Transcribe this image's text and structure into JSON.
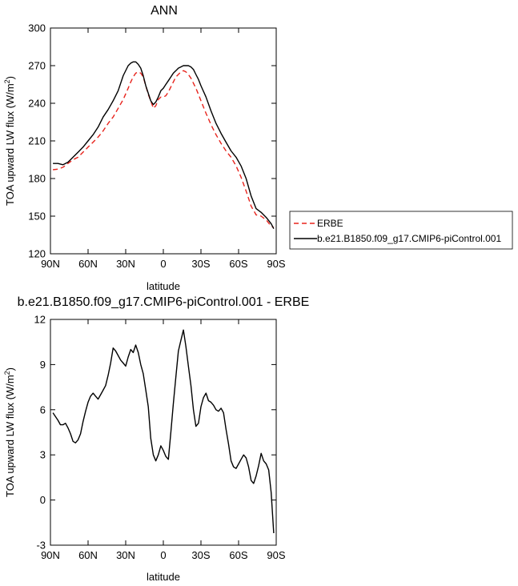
{
  "chart_data": [
    {
      "type": "line",
      "title": "ANN",
      "xlabel": "latitude",
      "ylabel": "TOA upward LW flux (W/m",
      "ylabel_sup": "2",
      "ylabel_end": ")",
      "xlim": [
        90,
        -90
      ],
      "ylim": [
        120,
        300
      ],
      "xticks": [
        {
          "v": 90,
          "label": "90N"
        },
        {
          "v": 60,
          "label": "60N"
        },
        {
          "v": 30,
          "label": "30N"
        },
        {
          "v": 0,
          "label": "0"
        },
        {
          "v": -30,
          "label": "30S"
        },
        {
          "v": -60,
          "label": "60S"
        },
        {
          "v": -90,
          "label": "90S"
        }
      ],
      "yticks": [
        120,
        150,
        180,
        210,
        240,
        270,
        300
      ],
      "legend_position": "right",
      "series": [
        {
          "name": "ERBE",
          "color": "#e8231c",
          "dash": "dashed",
          "x": [
            88,
            84,
            80,
            76,
            72,
            68,
            64,
            60,
            56,
            52,
            48,
            44,
            40,
            36,
            32,
            28,
            26,
            24,
            22,
            20,
            18,
            16,
            12,
            10,
            8,
            6,
            4,
            2,
            0,
            -2,
            -4,
            -6,
            -8,
            -10,
            -12,
            -14,
            -16,
            -18,
            -20,
            -22,
            -24,
            -26,
            -28,
            -30,
            -34,
            -38,
            -42,
            -46,
            -50,
            -54,
            -58,
            -62,
            -66,
            -70,
            -74,
            -78,
            -82,
            -86,
            -88
          ],
          "y": [
            187,
            187.5,
            189,
            192,
            195,
            197,
            201,
            205,
            209,
            213,
            218,
            224,
            229,
            236,
            243,
            252,
            257,
            261,
            264,
            265,
            264,
            261,
            247,
            242,
            236,
            238,
            243,
            245,
            245,
            246,
            249,
            253,
            257,
            261,
            263,
            265,
            266,
            265,
            263,
            260,
            256,
            252,
            247,
            242,
            232,
            223,
            215,
            208,
            202,
            197,
            190,
            181,
            170,
            158,
            151,
            150,
            147,
            142,
            141
          ]
        },
        {
          "name": "b.e21.B1850.f09_g17.CMIP6-piControl.001",
          "color": "#000000",
          "dash": "solid",
          "x": [
            88,
            84,
            80,
            76,
            72,
            68,
            64,
            60,
            56,
            52,
            48,
            44,
            40,
            36,
            32,
            28,
            26,
            24,
            22,
            20,
            18,
            16,
            14,
            12,
            10,
            8,
            6,
            4,
            2,
            0,
            -2,
            -4,
            -6,
            -8,
            -10,
            -12,
            -14,
            -16,
            -18,
            -20,
            -22,
            -24,
            -26,
            -28,
            -30,
            -34,
            -38,
            -42,
            -46,
            -50,
            -54,
            -58,
            -62,
            -66,
            -70,
            -74,
            -78,
            -82,
            -86,
            -88
          ],
          "y": [
            192,
            192,
            191,
            193,
            197,
            201,
            205,
            210,
            215,
            221,
            229,
            235,
            242,
            250,
            262,
            270,
            272,
            273,
            273,
            271,
            268,
            262,
            254,
            248,
            242,
            239,
            241,
            245,
            250,
            252,
            255,
            258,
            261,
            264,
            266,
            268,
            269,
            270,
            270,
            270,
            269,
            267,
            263,
            259,
            254,
            245,
            234,
            224,
            216,
            209,
            202,
            197,
            190,
            180,
            166,
            156,
            153,
            149,
            144,
            140
          ]
        }
      ]
    },
    {
      "type": "line",
      "title": "b.e21.B1850.f09_g17.CMIP6-piControl.001 - ERBE",
      "xlabel": "latitude",
      "ylabel": "TOA upward LW flux (W/m",
      "ylabel_sup": "2",
      "ylabel_end": ")",
      "xlim": [
        90,
        -90
      ],
      "ylim": [
        -3,
        12
      ],
      "xticks": [
        {
          "v": 90,
          "label": "90N"
        },
        {
          "v": 60,
          "label": "60N"
        },
        {
          "v": 30,
          "label": "30N"
        },
        {
          "v": 0,
          "label": "0"
        },
        {
          "v": -30,
          "label": "30S"
        },
        {
          "v": -60,
          "label": "60S"
        },
        {
          "v": -90,
          "label": "90S"
        }
      ],
      "yticks": [
        -3,
        0,
        3,
        6,
        9,
        12
      ],
      "series": [
        {
          "color": "#000000",
          "x": [
            88,
            84,
            82,
            80,
            78,
            76,
            74,
            72,
            70,
            68,
            66,
            64,
            62,
            60,
            58,
            56,
            54,
            52,
            50,
            48,
            46,
            44,
            42,
            40,
            38,
            36,
            34,
            32,
            30,
            28,
            26,
            24,
            22,
            20,
            18,
            16,
            14,
            12,
            10,
            8,
            6,
            4,
            2,
            0,
            -2,
            -4,
            -6,
            -8,
            -10,
            -12,
            -14,
            -16,
            -18,
            -20,
            -22,
            -24,
            -26,
            -28,
            -30,
            -32,
            -34,
            -36,
            -38,
            -40,
            -42,
            -44,
            -46,
            -48,
            -50,
            -52,
            -54,
            -56,
            -58,
            -60,
            -62,
            -64,
            -66,
            -68,
            -70,
            -72,
            -74,
            -76,
            -78,
            -80,
            -82,
            -84,
            -86,
            -88
          ],
          "y": [
            5.8,
            5.3,
            5.0,
            5.0,
            5.1,
            4.8,
            4.4,
            3.9,
            3.8,
            4.0,
            4.4,
            5.2,
            5.9,
            6.5,
            6.9,
            7.1,
            6.9,
            6.7,
            7.0,
            7.3,
            7.6,
            8.3,
            9.1,
            10.1,
            9.9,
            9.6,
            9.3,
            9.1,
            8.9,
            9.5,
            10.0,
            9.8,
            10.3,
            9.8,
            9.0,
            8.4,
            7.3,
            6.2,
            4.1,
            3.0,
            2.6,
            3.0,
            3.6,
            3.3,
            2.9,
            2.7,
            4.5,
            6.4,
            8.2,
            9.9,
            10.6,
            11.3,
            10.2,
            8.9,
            7.6,
            6.0,
            4.9,
            5.1,
            6.2,
            6.8,
            7.1,
            6.6,
            6.5,
            6.3,
            6.0,
            5.9,
            6.1,
            5.8,
            4.7,
            3.7,
            2.6,
            2.2,
            2.1,
            2.4,
            2.7,
            3.0,
            2.8,
            2.2,
            1.3,
            1.1,
            1.6,
            2.3,
            3.1,
            2.6,
            2.4,
            2.0,
            0.5,
            -2.2
          ]
        }
      ]
    }
  ]
}
